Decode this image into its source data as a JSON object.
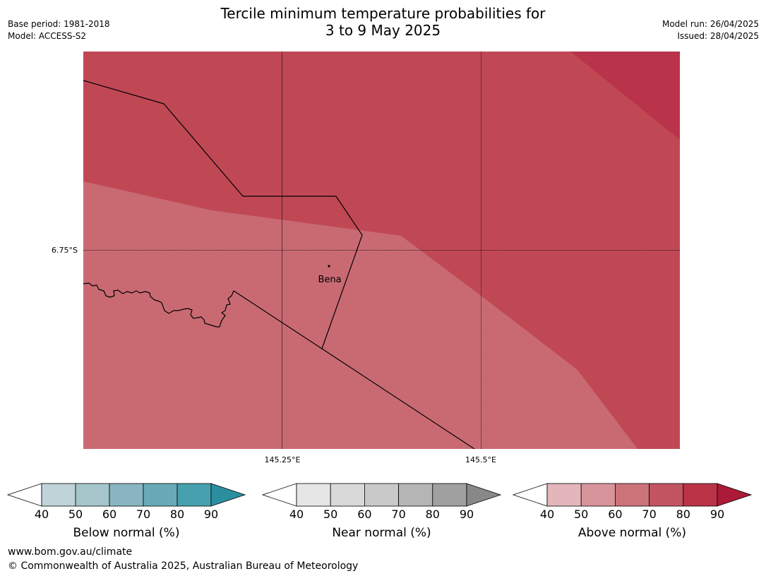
{
  "title": {
    "line1": "Tercile minimum temperature probabilities for",
    "line2": "3 to 9 May 2025"
  },
  "meta": {
    "base_period": "Base period: 1981-2018",
    "model": "Model: ACCESS-S2",
    "model_run": "Model run: 26/04/2025",
    "issued": "Issued: 28/04/2025"
  },
  "map": {
    "latitude_label": "6.75°S",
    "longitude_labels": [
      "145.25°E",
      "145.5°E"
    ],
    "place_label": "Bena",
    "colors": {
      "above_60_70": "#c96a73",
      "above_70_80": "#c04855",
      "above_80_90": "#b9344a",
      "boundary": "#000000"
    }
  },
  "colorbars": [
    {
      "label": "Below normal (%)",
      "ticks": [
        "40",
        "50",
        "60",
        "70",
        "80",
        "90"
      ],
      "colors": [
        "#bfd3d9",
        "#a5c5cb",
        "#88b5c0",
        "#6aaab8",
        "#47a0ae",
        "#2b8fa0"
      ]
    },
    {
      "label": "Near normal (%)",
      "ticks": [
        "40",
        "50",
        "60",
        "70",
        "80",
        "90"
      ],
      "colors": [
        "#e6e6e6",
        "#d9d9d9",
        "#c9c9c9",
        "#b5b5b5",
        "#a0a0a0",
        "#888888"
      ]
    },
    {
      "label": "Above normal (%)",
      "ticks": [
        "40",
        "50",
        "60",
        "70",
        "80",
        "90"
      ],
      "colors": [
        "#e2b6bb",
        "#d8949b",
        "#cd737a",
        "#c35562",
        "#bb3347",
        "#ab1a36"
      ]
    }
  ],
  "footer": {
    "url": "www.bom.gov.au/climate",
    "copyright": "© Commonwealth of Australia 2025, Australian Bureau of Meteorology"
  }
}
